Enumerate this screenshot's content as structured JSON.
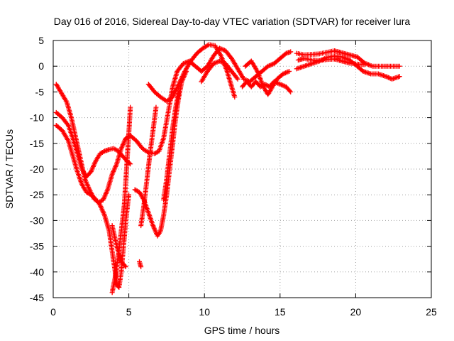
{
  "chart_data": {
    "type": "scatter",
    "title": "Day 016 of 2016, Sidereal Day-to-day VTEC variation (SDTVAR) for receiver lura",
    "xlabel": "GPS time / hours",
    "ylabel": "SDTVAR / TECUs",
    "xlim": [
      0,
      25
    ],
    "ylim": [
      -45,
      5
    ],
    "xticks": [
      0,
      5,
      10,
      15,
      20,
      25
    ],
    "yticks": [
      5,
      0,
      -5,
      -10,
      -15,
      -20,
      -25,
      -30,
      -35,
      -40,
      -45
    ],
    "grid": true,
    "grid_style": "dotted",
    "marker": "+",
    "marker_color": "#ff0000",
    "series": [
      {
        "name": "track-1",
        "points": [
          [
            0.2,
            -3.5
          ],
          [
            0.5,
            -5
          ],
          [
            0.9,
            -7
          ],
          [
            1.2,
            -10
          ],
          [
            1.5,
            -14
          ],
          [
            1.8,
            -18
          ],
          [
            2.1,
            -22
          ],
          [
            2.4,
            -24
          ],
          [
            2.7,
            -25.8
          ],
          [
            3.0,
            -26.5
          ],
          [
            3.3,
            -26
          ],
          [
            3.6,
            -24
          ],
          [
            3.9,
            -21
          ],
          [
            4.2,
            -19
          ],
          [
            4.5,
            -16
          ],
          [
            4.8,
            -14
          ],
          [
            5.1,
            -13.5
          ],
          [
            5.5,
            -14.5
          ],
          [
            5.9,
            -16
          ],
          [
            6.3,
            -16.8
          ],
          [
            6.7,
            -17
          ],
          [
            7.0,
            -16.5
          ],
          [
            7.3,
            -14
          ],
          [
            7.6,
            -9
          ],
          [
            7.9,
            -4
          ],
          [
            8.2,
            -1
          ],
          [
            8.6,
            0.5
          ],
          [
            9.0,
            1
          ],
          [
            9.4,
            0
          ],
          [
            9.8,
            -1
          ],
          [
            10.2,
            0
          ],
          [
            10.6,
            2
          ],
          [
            11.0,
            3.5
          ],
          [
            11.4,
            3
          ],
          [
            11.8,
            1.5
          ],
          [
            12.2,
            -0.5
          ],
          [
            12.6,
            -2.5
          ],
          [
            13.0,
            -3
          ],
          [
            13.4,
            -2
          ],
          [
            13.8,
            -1
          ],
          [
            14.2,
            0
          ],
          [
            14.6,
            0.5
          ],
          [
            15.0,
            1.5
          ],
          [
            15.4,
            2.5
          ],
          [
            15.7,
            2.8
          ]
        ]
      },
      {
        "name": "track-2",
        "points": [
          [
            0.2,
            -9
          ],
          [
            0.6,
            -10
          ],
          [
            1.0,
            -11.5
          ],
          [
            1.3,
            -14
          ],
          [
            1.6,
            -17
          ],
          [
            1.9,
            -20
          ],
          [
            2.2,
            -21.5
          ],
          [
            2.5,
            -20.5
          ],
          [
            2.8,
            -18.5
          ],
          [
            3.1,
            -17
          ],
          [
            3.4,
            -16.5
          ],
          [
            3.7,
            -16.2
          ],
          [
            4.0,
            -16
          ],
          [
            4.3,
            -16.5
          ],
          [
            4.6,
            -17.5
          ],
          [
            4.9,
            -18.5
          ],
          [
            5.1,
            -19
          ]
        ]
      },
      {
        "name": "track-3",
        "points": [
          [
            0.2,
            -11.5
          ],
          [
            0.6,
            -12.5
          ],
          [
            1.0,
            -14.5
          ],
          [
            1.3,
            -17.5
          ],
          [
            1.6,
            -20.5
          ],
          [
            1.9,
            -23
          ],
          [
            2.2,
            -24.5
          ],
          [
            2.5,
            -25
          ],
          [
            2.8,
            -25.8
          ],
          [
            3.1,
            -27
          ],
          [
            3.4,
            -29
          ],
          [
            3.7,
            -32
          ],
          [
            3.9,
            -36
          ],
          [
            4.1,
            -40
          ],
          [
            4.2,
            -42.5
          ],
          [
            4.35,
            -43
          ],
          [
            4.5,
            -40
          ],
          [
            4.65,
            -35
          ],
          [
            4.8,
            -30
          ],
          [
            5.0,
            -25
          ]
        ]
      },
      {
        "name": "track-4",
        "points": [
          [
            3.9,
            -44
          ],
          [
            4.1,
            -41
          ],
          [
            4.3,
            -37
          ],
          [
            4.5,
            -32
          ],
          [
            4.7,
            -27
          ],
          [
            4.85,
            -20
          ],
          [
            5.0,
            -13
          ],
          [
            5.1,
            -8
          ]
        ]
      },
      {
        "name": "track-5",
        "points": [
          [
            3.9,
            -31
          ],
          [
            4.2,
            -35
          ],
          [
            4.5,
            -38
          ],
          [
            4.8,
            -39
          ]
        ]
      },
      {
        "name": "track-6",
        "points": [
          [
            5.7,
            -38
          ],
          [
            5.8,
            -39
          ]
        ]
      },
      {
        "name": "track-7",
        "points": [
          [
            5.4,
            -24
          ],
          [
            5.7,
            -24.5
          ],
          [
            6.0,
            -26
          ],
          [
            6.3,
            -28.5
          ],
          [
            6.6,
            -31
          ],
          [
            6.9,
            -33
          ],
          [
            7.1,
            -32
          ],
          [
            7.3,
            -29
          ],
          [
            7.5,
            -25
          ],
          [
            7.7,
            -20
          ],
          [
            7.9,
            -15
          ],
          [
            8.1,
            -10
          ],
          [
            8.3,
            -6
          ],
          [
            8.5,
            -3
          ],
          [
            8.8,
            -1
          ]
        ]
      },
      {
        "name": "track-8",
        "points": [
          [
            5.8,
            -31
          ],
          [
            6.0,
            -27
          ],
          [
            6.2,
            -22
          ],
          [
            6.4,
            -17
          ],
          [
            6.6,
            -12.5
          ],
          [
            6.8,
            -8
          ]
        ]
      },
      {
        "name": "track-9",
        "points": [
          [
            6.3,
            -3.5
          ],
          [
            6.7,
            -5
          ],
          [
            7.1,
            -6
          ],
          [
            7.5,
            -6.8
          ],
          [
            7.9,
            -6
          ],
          [
            8.3,
            -3.5
          ],
          [
            8.7,
            -1
          ],
          [
            9.1,
            1
          ],
          [
            9.5,
            2.5
          ],
          [
            9.9,
            3.5
          ],
          [
            10.3,
            4.2
          ],
          [
            10.7,
            4
          ],
          [
            11.1,
            2
          ],
          [
            11.5,
            -1
          ],
          [
            11.8,
            -4
          ],
          [
            12.0,
            -6
          ]
        ]
      },
      {
        "name": "track-10",
        "points": [
          [
            7.3,
            -26
          ],
          [
            7.5,
            -22
          ],
          [
            7.7,
            -17
          ],
          [
            7.9,
            -12
          ],
          [
            8.1,
            -8
          ],
          [
            8.3,
            -5
          ]
        ]
      },
      {
        "name": "track-11",
        "points": [
          [
            9.8,
            -3
          ],
          [
            10.2,
            -1
          ],
          [
            10.6,
            0.5
          ],
          [
            11.0,
            1
          ],
          [
            11.4,
            0.5
          ],
          [
            11.8,
            -1
          ],
          [
            12.2,
            -2.5
          ]
        ]
      },
      {
        "name": "track-12",
        "points": [
          [
            12.5,
            -4
          ],
          [
            12.8,
            -3
          ],
          [
            13.1,
            -4
          ],
          [
            13.4,
            -3
          ],
          [
            13.7,
            -4
          ],
          [
            14.0,
            -3.5
          ],
          [
            14.3,
            -4
          ],
          [
            14.6,
            -3
          ],
          [
            15.0,
            -3.5
          ],
          [
            15.4,
            -4
          ],
          [
            15.7,
            -5
          ]
        ]
      },
      {
        "name": "track-13",
        "points": [
          [
            12.7,
            0
          ],
          [
            13.1,
            1
          ],
          [
            13.5,
            -1
          ],
          [
            13.9,
            -4
          ],
          [
            14.2,
            -5.5
          ],
          [
            14.5,
            -4
          ],
          [
            14.8,
            -2.5
          ],
          [
            15.2,
            -1.5
          ],
          [
            15.6,
            -1
          ]
        ]
      },
      {
        "name": "track-14",
        "points": [
          [
            16.1,
            2.5
          ],
          [
            16.6,
            2.2
          ],
          [
            17.1,
            2.3
          ],
          [
            17.6,
            2.4
          ],
          [
            18.1,
            2.7
          ],
          [
            18.6,
            3
          ],
          [
            19.1,
            2.6
          ],
          [
            19.6,
            2.2
          ],
          [
            20.1,
            1.8
          ],
          [
            20.6,
            0.6
          ],
          [
            21.1,
            0
          ],
          [
            21.6,
            0
          ],
          [
            22.1,
            0
          ],
          [
            22.6,
            0
          ],
          [
            22.9,
            0
          ]
        ]
      },
      {
        "name": "track-15",
        "points": [
          [
            16.1,
            -0.5
          ],
          [
            16.6,
            0
          ],
          [
            17.1,
            0.5
          ],
          [
            17.6,
            1
          ],
          [
            18.1,
            1.7
          ],
          [
            18.6,
            2
          ],
          [
            19.1,
            1.8
          ],
          [
            19.6,
            1.2
          ],
          [
            20.1,
            0
          ],
          [
            20.5,
            -1
          ],
          [
            21.0,
            -1.5
          ],
          [
            21.5,
            -1.5
          ],
          [
            22.0,
            -2
          ],
          [
            22.4,
            -2.5
          ],
          [
            22.9,
            -2
          ]
        ]
      },
      {
        "name": "track-16",
        "points": [
          [
            16.2,
            1.2
          ],
          [
            16.6,
            1.5
          ],
          [
            17.1,
            1.2
          ],
          [
            17.6,
            1.1
          ],
          [
            18.1,
            1.3
          ],
          [
            18.6,
            1.4
          ],
          [
            19.1,
            1
          ],
          [
            19.6,
            0.6
          ],
          [
            20.1,
            0.4
          ],
          [
            20.6,
            0.3
          ]
        ]
      }
    ]
  }
}
